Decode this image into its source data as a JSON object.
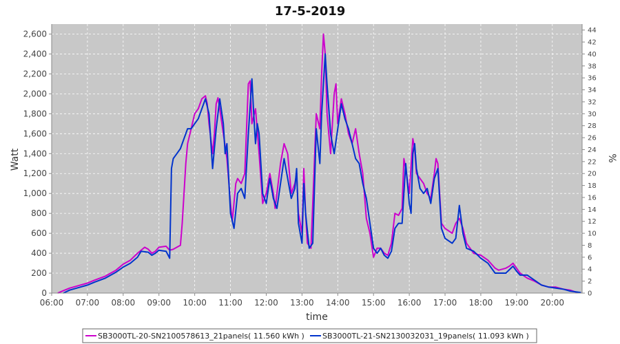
{
  "chart_data": {
    "type": "line",
    "title": "17-5-2019",
    "xlabel": "time",
    "ylabel": "Watt",
    "y2label": "%",
    "xlim": [
      6.0,
      20.833
    ],
    "ylim": [
      0,
      2700
    ],
    "y2lim": [
      0,
      45
    ],
    "x_ticks": [
      6,
      7,
      8,
      9,
      10,
      11,
      12,
      13,
      14,
      15,
      16,
      17,
      18,
      19,
      20
    ],
    "x_tick_labels": [
      "06:00",
      "07:00",
      "08:00",
      "09:00",
      "10:00",
      "11:00",
      "12:00",
      "13:00",
      "14:00",
      "15:00",
      "16:00",
      "17:00",
      "18:00",
      "19:00",
      "20:00"
    ],
    "y_ticks": [
      0,
      200,
      400,
      600,
      800,
      1000,
      1200,
      1400,
      1600,
      1800,
      2000,
      2200,
      2400,
      2600
    ],
    "y_tick_labels": [
      "0",
      "200",
      "400",
      "600",
      "800",
      "1,000",
      "1,200",
      "1,400",
      "1,600",
      "1,800",
      "2,000",
      "2,200",
      "2,400",
      "2,600"
    ],
    "y2_ticks": [
      0,
      2,
      4,
      6,
      8,
      10,
      12,
      14,
      16,
      18,
      20,
      22,
      24,
      26,
      28,
      30,
      32,
      34,
      36,
      38,
      40,
      42,
      44
    ],
    "y2_tick_labels": [
      "0",
      "2",
      "4",
      "6",
      "8",
      "10",
      "12",
      "14",
      "16",
      "18",
      "20",
      "22",
      "24",
      "26",
      "28",
      "30",
      "32",
      "34",
      "36",
      "38",
      "40",
      "42",
      "44"
    ],
    "grid": true,
    "legend_position": "bottom",
    "plot_background": "#c8c8c8",
    "series": [
      {
        "name": "SB3000TL-20-SN2100578613_21panels( 11.560 kWh )",
        "color": "#cc00cc",
        "points": [
          [
            6.17,
            0
          ],
          [
            6.3,
            20
          ],
          [
            6.5,
            50
          ],
          [
            6.8,
            80
          ],
          [
            7.0,
            100
          ],
          [
            7.2,
            130
          ],
          [
            7.5,
            170
          ],
          [
            7.8,
            230
          ],
          [
            8.0,
            290
          ],
          [
            8.2,
            330
          ],
          [
            8.4,
            400
          ],
          [
            8.6,
            460
          ],
          [
            8.7,
            440
          ],
          [
            8.8,
            400
          ],
          [
            8.9,
            420
          ],
          [
            9.0,
            460
          ],
          [
            9.2,
            470
          ],
          [
            9.3,
            430
          ],
          [
            9.4,
            440
          ],
          [
            9.5,
            460
          ],
          [
            9.6,
            480
          ],
          [
            9.65,
            700
          ],
          [
            9.7,
            1000
          ],
          [
            9.75,
            1300
          ],
          [
            9.8,
            1500
          ],
          [
            9.9,
            1650
          ],
          [
            10.0,
            1800
          ],
          [
            10.1,
            1850
          ],
          [
            10.2,
            1950
          ],
          [
            10.3,
            1980
          ],
          [
            10.35,
            1900
          ],
          [
            10.4,
            1700
          ],
          [
            10.5,
            1400
          ],
          [
            10.55,
            1600
          ],
          [
            10.6,
            1900
          ],
          [
            10.65,
            1960
          ],
          [
            10.7,
            1850
          ],
          [
            10.8,
            1600
          ],
          [
            10.9,
            1350
          ],
          [
            11.0,
            900
          ],
          [
            11.05,
            720
          ],
          [
            11.15,
            1100
          ],
          [
            11.2,
            1150
          ],
          [
            11.3,
            1100
          ],
          [
            11.4,
            1200
          ],
          [
            11.5,
            2100
          ],
          [
            11.55,
            2130
          ],
          [
            11.6,
            1700
          ],
          [
            11.7,
            1850
          ],
          [
            11.8,
            1400
          ],
          [
            11.9,
            900
          ],
          [
            12.0,
            1000
          ],
          [
            12.1,
            1200
          ],
          [
            12.2,
            1000
          ],
          [
            12.25,
            850
          ],
          [
            12.3,
            1000
          ],
          [
            12.4,
            1300
          ],
          [
            12.5,
            1500
          ],
          [
            12.6,
            1400
          ],
          [
            12.7,
            1000
          ],
          [
            12.8,
            1100
          ],
          [
            12.85,
            1200
          ],
          [
            12.9,
            800
          ],
          [
            13.0,
            600
          ],
          [
            13.05,
            1250
          ],
          [
            13.1,
            800
          ],
          [
            13.15,
            500
          ],
          [
            13.25,
            450
          ],
          [
            13.3,
            900
          ],
          [
            13.4,
            1800
          ],
          [
            13.5,
            1650
          ],
          [
            13.55,
            2200
          ],
          [
            13.6,
            2600
          ],
          [
            13.65,
            2400
          ],
          [
            13.7,
            1800
          ],
          [
            13.8,
            1400
          ],
          [
            13.9,
            2000
          ],
          [
            13.95,
            2100
          ],
          [
            14.0,
            1700
          ],
          [
            14.1,
            1950
          ],
          [
            14.2,
            1800
          ],
          [
            14.3,
            1600
          ],
          [
            14.4,
            1500
          ],
          [
            14.5,
            1650
          ],
          [
            14.6,
            1400
          ],
          [
            14.7,
            1200
          ],
          [
            14.8,
            750
          ],
          [
            14.9,
            600
          ],
          [
            15.0,
            360
          ],
          [
            15.1,
            450
          ],
          [
            15.2,
            450
          ],
          [
            15.3,
            400
          ],
          [
            15.4,
            380
          ],
          [
            15.5,
            500
          ],
          [
            15.6,
            800
          ],
          [
            15.7,
            780
          ],
          [
            15.8,
            850
          ],
          [
            15.85,
            1350
          ],
          [
            15.9,
            1250
          ],
          [
            16.0,
            1000
          ],
          [
            16.1,
            1550
          ],
          [
            16.15,
            1450
          ],
          [
            16.2,
            1200
          ],
          [
            16.3,
            1150
          ],
          [
            16.4,
            1100
          ],
          [
            16.5,
            1000
          ],
          [
            16.6,
            950
          ],
          [
            16.7,
            1200
          ],
          [
            16.75,
            1350
          ],
          [
            16.8,
            1300
          ],
          [
            16.9,
            700
          ],
          [
            17.0,
            650
          ],
          [
            17.2,
            600
          ],
          [
            17.3,
            700
          ],
          [
            17.4,
            750
          ],
          [
            17.5,
            650
          ],
          [
            17.6,
            500
          ],
          [
            17.8,
            400
          ],
          [
            18.0,
            380
          ],
          [
            18.2,
            330
          ],
          [
            18.4,
            250
          ],
          [
            18.5,
            230
          ],
          [
            18.7,
            250
          ],
          [
            18.8,
            270
          ],
          [
            18.9,
            300
          ],
          [
            19.0,
            250
          ],
          [
            19.1,
            200
          ],
          [
            19.3,
            150
          ],
          [
            19.5,
            120
          ],
          [
            19.7,
            80
          ],
          [
            19.9,
            60
          ],
          [
            20.1,
            60
          ],
          [
            20.3,
            40
          ],
          [
            20.5,
            30
          ],
          [
            20.7,
            5
          ]
        ]
      },
      {
        "name": "SB3000TL-21-SN2130032031_19panels( 11.093 kWh )",
        "color": "#0033cc",
        "points": [
          [
            6.33,
            0
          ],
          [
            6.5,
            30
          ],
          [
            6.8,
            60
          ],
          [
            7.0,
            80
          ],
          [
            7.2,
            110
          ],
          [
            7.5,
            150
          ],
          [
            7.8,
            210
          ],
          [
            8.0,
            260
          ],
          [
            8.2,
            300
          ],
          [
            8.4,
            360
          ],
          [
            8.5,
            420
          ],
          [
            8.7,
            410
          ],
          [
            8.8,
            380
          ],
          [
            8.9,
            400
          ],
          [
            9.0,
            430
          ],
          [
            9.2,
            420
          ],
          [
            9.3,
            350
          ],
          [
            9.35,
            1250
          ],
          [
            9.4,
            1350
          ],
          [
            9.5,
            1400
          ],
          [
            9.6,
            1450
          ],
          [
            9.7,
            1550
          ],
          [
            9.8,
            1650
          ],
          [
            9.9,
            1650
          ],
          [
            10.0,
            1700
          ],
          [
            10.1,
            1750
          ],
          [
            10.2,
            1850
          ],
          [
            10.3,
            1950
          ],
          [
            10.4,
            1800
          ],
          [
            10.5,
            1250
          ],
          [
            10.6,
            1650
          ],
          [
            10.7,
            1950
          ],
          [
            10.8,
            1700
          ],
          [
            10.85,
            1400
          ],
          [
            10.9,
            1500
          ],
          [
            11.0,
            800
          ],
          [
            11.1,
            650
          ],
          [
            11.2,
            1000
          ],
          [
            11.3,
            1050
          ],
          [
            11.4,
            950
          ],
          [
            11.5,
            1600
          ],
          [
            11.6,
            2150
          ],
          [
            11.65,
            1800
          ],
          [
            11.7,
            1500
          ],
          [
            11.75,
            1700
          ],
          [
            11.8,
            1600
          ],
          [
            11.9,
            1000
          ],
          [
            12.0,
            900
          ],
          [
            12.1,
            1150
          ],
          [
            12.2,
            950
          ],
          [
            12.3,
            850
          ],
          [
            12.4,
            1100
          ],
          [
            12.5,
            1350
          ],
          [
            12.6,
            1150
          ],
          [
            12.7,
            950
          ],
          [
            12.8,
            1050
          ],
          [
            12.85,
            1250
          ],
          [
            12.9,
            700
          ],
          [
            13.0,
            500
          ],
          [
            13.05,
            1100
          ],
          [
            13.1,
            800
          ],
          [
            13.2,
            450
          ],
          [
            13.3,
            500
          ],
          [
            13.4,
            1650
          ],
          [
            13.5,
            1300
          ],
          [
            13.55,
            1800
          ],
          [
            13.6,
            2100
          ],
          [
            13.65,
            2400
          ],
          [
            13.7,
            2100
          ],
          [
            13.8,
            1600
          ],
          [
            13.9,
            1400
          ],
          [
            14.0,
            1650
          ],
          [
            14.1,
            1900
          ],
          [
            14.2,
            1750
          ],
          [
            14.3,
            1650
          ],
          [
            14.4,
            1500
          ],
          [
            14.5,
            1350
          ],
          [
            14.6,
            1300
          ],
          [
            14.7,
            1100
          ],
          [
            14.8,
            950
          ],
          [
            14.9,
            700
          ],
          [
            15.0,
            450
          ],
          [
            15.1,
            400
          ],
          [
            15.2,
            450
          ],
          [
            15.3,
            380
          ],
          [
            15.4,
            350
          ],
          [
            15.5,
            420
          ],
          [
            15.6,
            650
          ],
          [
            15.7,
            700
          ],
          [
            15.8,
            700
          ],
          [
            15.9,
            1300
          ],
          [
            16.0,
            900
          ],
          [
            16.05,
            800
          ],
          [
            16.1,
            1400
          ],
          [
            16.15,
            1500
          ],
          [
            16.2,
            1250
          ],
          [
            16.3,
            1050
          ],
          [
            16.4,
            1000
          ],
          [
            16.5,
            1050
          ],
          [
            16.6,
            900
          ],
          [
            16.7,
            1150
          ],
          [
            16.8,
            1250
          ],
          [
            16.9,
            650
          ],
          [
            17.0,
            550
          ],
          [
            17.2,
            500
          ],
          [
            17.3,
            550
          ],
          [
            17.4,
            880
          ],
          [
            17.5,
            600
          ],
          [
            17.6,
            450
          ],
          [
            17.8,
            420
          ],
          [
            18.0,
            350
          ],
          [
            18.2,
            300
          ],
          [
            18.3,
            250
          ],
          [
            18.4,
            200
          ],
          [
            18.5,
            200
          ],
          [
            18.7,
            200
          ],
          [
            18.9,
            270
          ],
          [
            19.0,
            220
          ],
          [
            19.1,
            180
          ],
          [
            19.3,
            180
          ],
          [
            19.5,
            130
          ],
          [
            19.7,
            80
          ],
          [
            19.9,
            60
          ],
          [
            20.1,
            50
          ],
          [
            20.3,
            40
          ],
          [
            20.5,
            20
          ],
          [
            20.8,
            5
          ]
        ]
      }
    ]
  }
}
